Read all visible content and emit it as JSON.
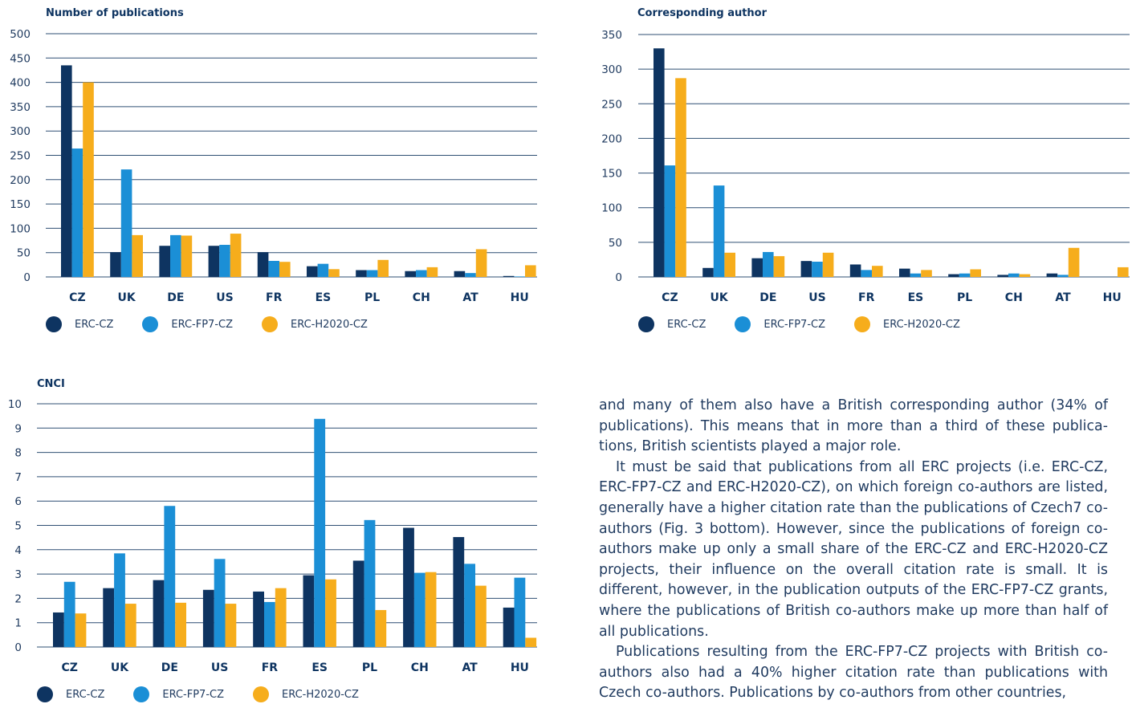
{
  "colors": {
    "erc_cz": "#0e3461",
    "erc_fp7_cz": "#1b8fd6",
    "erc_h2020_cz": "#f6ad1c",
    "gridline": "#2f4f73"
  },
  "legend": [
    "ERC-CZ",
    "ERC-FP7-CZ",
    "ERC-H2020-CZ"
  ],
  "chart_data": [
    {
      "type": "bar",
      "title": "Number of publications",
      "categories": [
        "CZ",
        "UK",
        "DE",
        "US",
        "FR",
        "ES",
        "PL",
        "CH",
        "AT",
        "HU"
      ],
      "ylim": [
        0,
        500
      ],
      "yticks": [
        "0",
        "50",
        "100",
        "150",
        "200",
        "250",
        "300",
        "350",
        "400",
        "450",
        "500"
      ],
      "grid": true,
      "legend_position": "bottom-left",
      "series": [
        {
          "name": "ERC-CZ",
          "values": [
            435,
            51,
            64,
            64,
            51,
            22,
            14,
            12,
            12,
            2
          ]
        },
        {
          "name": "ERC-FP7-CZ",
          "values": [
            264,
            221,
            86,
            66,
            33,
            27,
            14,
            14,
            8,
            1
          ]
        },
        {
          "name": "ERC-H2020-CZ",
          "values": [
            400,
            86,
            85,
            89,
            31,
            16,
            35,
            20,
            57,
            24
          ]
        }
      ]
    },
    {
      "type": "bar",
      "title": "Corresponding author",
      "categories": [
        "CZ",
        "UK",
        "DE",
        "US",
        "FR",
        "ES",
        "PL",
        "CH",
        "AT",
        "HU"
      ],
      "ylim": [
        0,
        350
      ],
      "yticks": [
        "0",
        "50",
        "100",
        "150",
        "200",
        "250",
        "300",
        "350"
      ],
      "grid": true,
      "legend_position": "bottom-left",
      "series": [
        {
          "name": "ERC-CZ",
          "values": [
            330,
            13,
            27,
            23,
            18,
            12,
            4,
            3,
            5,
            0
          ]
        },
        {
          "name": "ERC-FP7-CZ",
          "values": [
            161,
            132,
            36,
            22,
            10,
            5,
            5,
            5,
            3,
            0
          ]
        },
        {
          "name": "ERC-H2020-CZ",
          "values": [
            287,
            35,
            30,
            35,
            16,
            10,
            11,
            4,
            42,
            14
          ]
        }
      ]
    },
    {
      "type": "bar",
      "title": "CNCI",
      "categories": [
        "CZ",
        "UK",
        "DE",
        "US",
        "FR",
        "ES",
        "PL",
        "CH",
        "AT",
        "HU"
      ],
      "ylim": [
        0,
        10
      ],
      "yticks": [
        "0",
        "1",
        "2",
        "3",
        "4",
        "5",
        "6",
        "7",
        "8",
        "9",
        "10"
      ],
      "grid": true,
      "legend_position": "bottom-left",
      "series": [
        {
          "name": "ERC-CZ",
          "values": [
            1.42,
            2.42,
            2.75,
            2.35,
            2.28,
            2.95,
            3.55,
            4.9,
            4.52,
            1.62
          ]
        },
        {
          "name": "ERC-FP7-CZ",
          "values": [
            2.68,
            3.85,
            5.8,
            3.62,
            1.85,
            9.38,
            5.22,
            3.05,
            3.42,
            2.85
          ]
        },
        {
          "name": "ERC-H2020-CZ",
          "values": [
            1.38,
            1.78,
            1.82,
            1.78,
            2.42,
            2.78,
            1.52,
            3.08,
            2.52,
            0.38
          ]
        }
      ]
    }
  ],
  "text": {
    "paragraphs": [
      "and many of them also have a British corresponding author (34% of publications). This means that in more than a third of these publica­tions, British scientists played a major role.",
      "It must be said that publications from all ERC projects (i.e. ERC-CZ, ERC-FP7-CZ and ERC-H2020-CZ), on which foreign co-authors are listed, generally have a higher citation rate than the publications of Czech7 co-authors (Fig. 3 bottom). However, since the publications of foreign co-authors make up only a small share of the ERC-CZ and ERC-H2020-CZ projects, their influence on the overall citation rate is small. It is different, however, in the publication outputs of the ERC-FP7-CZ grants, where the publications of British co-authors make up more than half of all publications.",
      "Publications resulting from the ERC-FP7-CZ projects with British co-authors also had a 40% higher citation rate than publications with Czech co-authors. Publications by co-authors from other countries,"
    ]
  }
}
